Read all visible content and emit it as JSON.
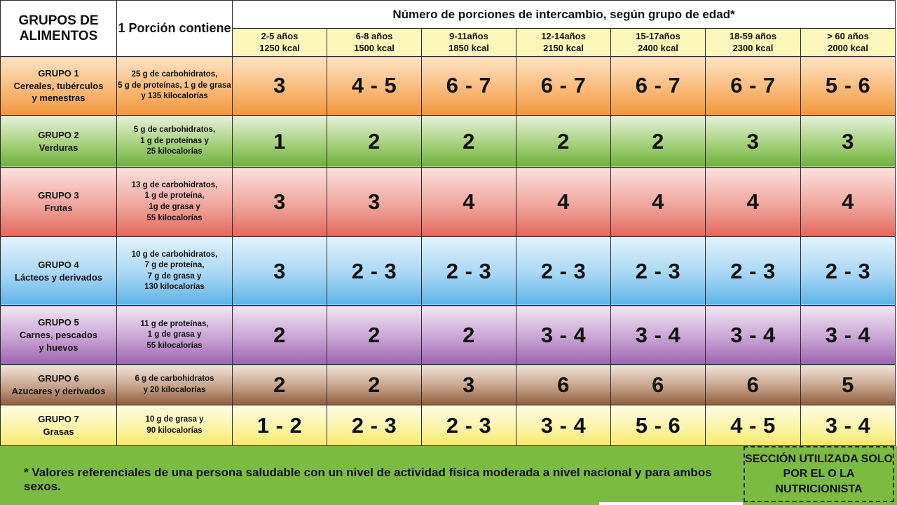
{
  "header": {
    "group_col": "GRUPOS DE ALIMENTOS",
    "portion_col": "1 Porción contiene",
    "main_title": "Número de porciones de intercambio, según grupo de edad*",
    "age_groups": [
      {
        "age": "2-5 años",
        "kcal": "1250 kcal"
      },
      {
        "age": "6-8 años",
        "kcal": "1500 kcal"
      },
      {
        "age": "9-11años",
        "kcal": "1850 kcal"
      },
      {
        "age": "12-14años",
        "kcal": "2150 kcal"
      },
      {
        "age": "15-17años",
        "kcal": "2400 kcal"
      },
      {
        "age": "18-59 años",
        "kcal": "2300 kcal"
      },
      {
        "age": "> 60 años",
        "kcal": "2000 kcal"
      }
    ]
  },
  "groups": [
    {
      "name": [
        "GRUPO 1",
        "Cereales, tubérculos",
        "y menestras"
      ],
      "desc": [
        "25 g de carbohidratos,",
        "5 g de proteínas, 1 g de grasa",
        "y 135 kilocalorías"
      ],
      "values": [
        "3",
        "4 - 5",
        "6 - 7",
        "6 - 7",
        "6 - 7",
        "6 - 7",
        "5 - 6"
      ],
      "color": "#f2963d"
    },
    {
      "name": [
        "GRUPO 2",
        "Verduras"
      ],
      "desc": [
        "5 g de carbohidratos,",
        "1 g de proteínas y",
        "25 kilocalorías"
      ],
      "values": [
        "1",
        "2",
        "2",
        "2",
        "2",
        "3",
        "3"
      ],
      "color": "#6db13a"
    },
    {
      "name": [
        "GRUPO 3",
        "Frutas"
      ],
      "desc": [
        "13 g de carbohidratos,",
        "1 g de proteína,",
        "1g de grasa y",
        "55 kilocalorías"
      ],
      "values": [
        "3",
        "3",
        "4",
        "4",
        "4",
        "4",
        "4"
      ],
      "color": "#e2675c"
    },
    {
      "name": [
        "GRUPO 4",
        "Lácteos y derivados"
      ],
      "desc": [
        "10 g de carbohidratos,",
        "7 g de proteína,",
        "7 g de grasa y",
        "130 kilocalorías"
      ],
      "values": [
        "3",
        "2 - 3",
        "2 - 3",
        "2 - 3",
        "2 - 3",
        "2 - 3",
        "2 - 3"
      ],
      "color": "#5cb3e8"
    },
    {
      "name": [
        "GRUPO 5",
        "Carnes, pescados",
        "y huevos"
      ],
      "desc": [
        "11 g de proteínas,",
        "1 g de grasa y",
        "55 kilocalorías"
      ],
      "values": [
        "2",
        "2",
        "2",
        "3 - 4",
        "3 - 4",
        "3 - 4",
        "3 - 4"
      ],
      "color": "#9e63b0"
    },
    {
      "name": [
        "GRUPO 6",
        "Azucares y derivados"
      ],
      "desc": [
        "6 g de carbohidratos",
        "y 20 kilocalorías"
      ],
      "values": [
        "2",
        "2",
        "3",
        "6",
        "6",
        "6",
        "5"
      ],
      "color": "#8e5e40"
    },
    {
      "name": [
        "GRUPO 7",
        "Grasas"
      ],
      "desc": [
        "10 g de grasa y",
        "90 kilocalorías"
      ],
      "values": [
        "1 - 2",
        "2 - 3",
        "2 - 3",
        "3 - 4",
        "5 - 6",
        "4 - 5",
        "3 - 4"
      ],
      "color": "#f7e96a"
    }
  ],
  "footer": {
    "footnote": "* Valores referenciales de una persona saludable con un nivel de actividad física moderada a nivel nacional y para ambos sexos.",
    "nutri_box": [
      "SECCIÓN UTILIZADA SOLO",
      "POR EL O LA NUTRICIONISTA"
    ],
    "bar_color": "#7cbb41"
  }
}
